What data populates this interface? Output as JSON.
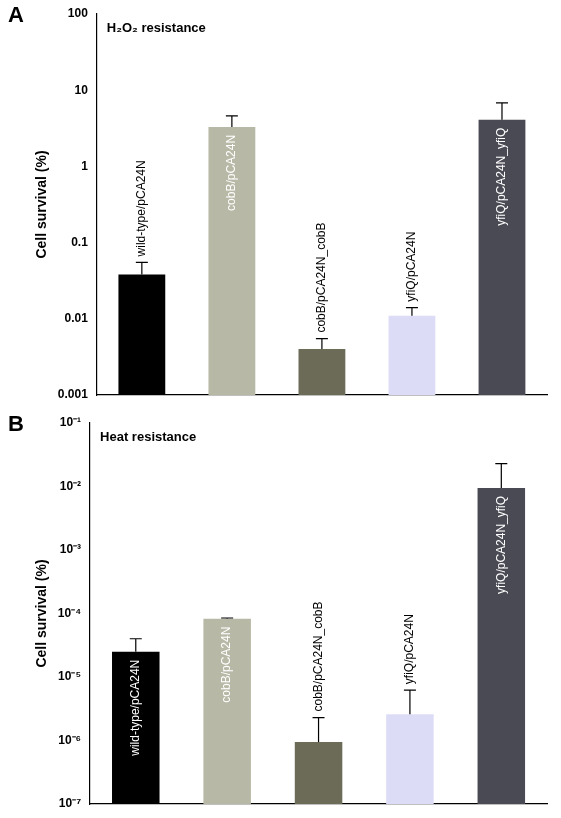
{
  "chart_data": [
    {
      "type": "bar",
      "annotations": [
        "A"
      ],
      "title": "H₂O₂ resistance",
      "y_label": "Cell survival (%)",
      "categories": [
        "wild-type/pCA24N",
        "cobB/pCA24N",
        "cobB/pCA24N_cobB",
        "yfiQ/pCA24N",
        "yfiQ/pCA24N_yfiQ"
      ],
      "values": [
        0.038,
        3.3,
        0.004,
        0.011,
        4.1
      ],
      "errors": [
        0.017,
        1.3,
        0.0015,
        0.003,
        2.7
      ],
      "colors": [
        "#000000",
        "#b8b8a6",
        "#6b6b58",
        "#dcdcf6",
        "#4a4a55"
      ],
      "log": "y",
      "ylim": [
        0.001,
        100
      ],
      "yticks": [
        0.001,
        0.01,
        0.1,
        1,
        10,
        100
      ],
      "grid": false,
      "tick_labels": "y"
    },
    {
      "type": "bar",
      "annotations": [
        "B"
      ],
      "title": "Heat resistance",
      "y_label": "Cell survival (%)",
      "categories": [
        "wild-type/pCA24N",
        "cobB/pCA24N",
        "cobB/pCA24N_cobB",
        "yfiQ/pCA24N",
        "yfiQ/pCA24N_yfiQ"
      ],
      "values": [
        2.5e-05,
        8.3e-05,
        9.5e-07,
        2.6e-06,
        0.0095
      ],
      "errors": [
        1.5e-05,
        2e-06,
        1.35e-06,
        3.6e-06,
        0.0135
      ],
      "colors": [
        "#000000",
        "#b8b8a6",
        "#6b6b58",
        "#dcdcf6",
        "#4a4a55"
      ],
      "log": "y",
      "ylim": [
        1e-07,
        0.1
      ],
      "yticks": [
        {
          "value": 1e-07,
          "label": "10⁻⁷"
        },
        {
          "value": 1e-06,
          "label": "10⁻⁶"
        },
        {
          "value": 1e-05,
          "label": "10⁻⁵"
        },
        {
          "value": 0.0001,
          "label": "10⁻⁴"
        },
        {
          "value": 0.001,
          "label": "10⁻³"
        },
        {
          "value": 0.01,
          "label": "10⁻²"
        },
        {
          "value": 0.1,
          "label": "10⁻¹"
        }
      ],
      "grid": false,
      "tick_labels": "y"
    }
  ]
}
